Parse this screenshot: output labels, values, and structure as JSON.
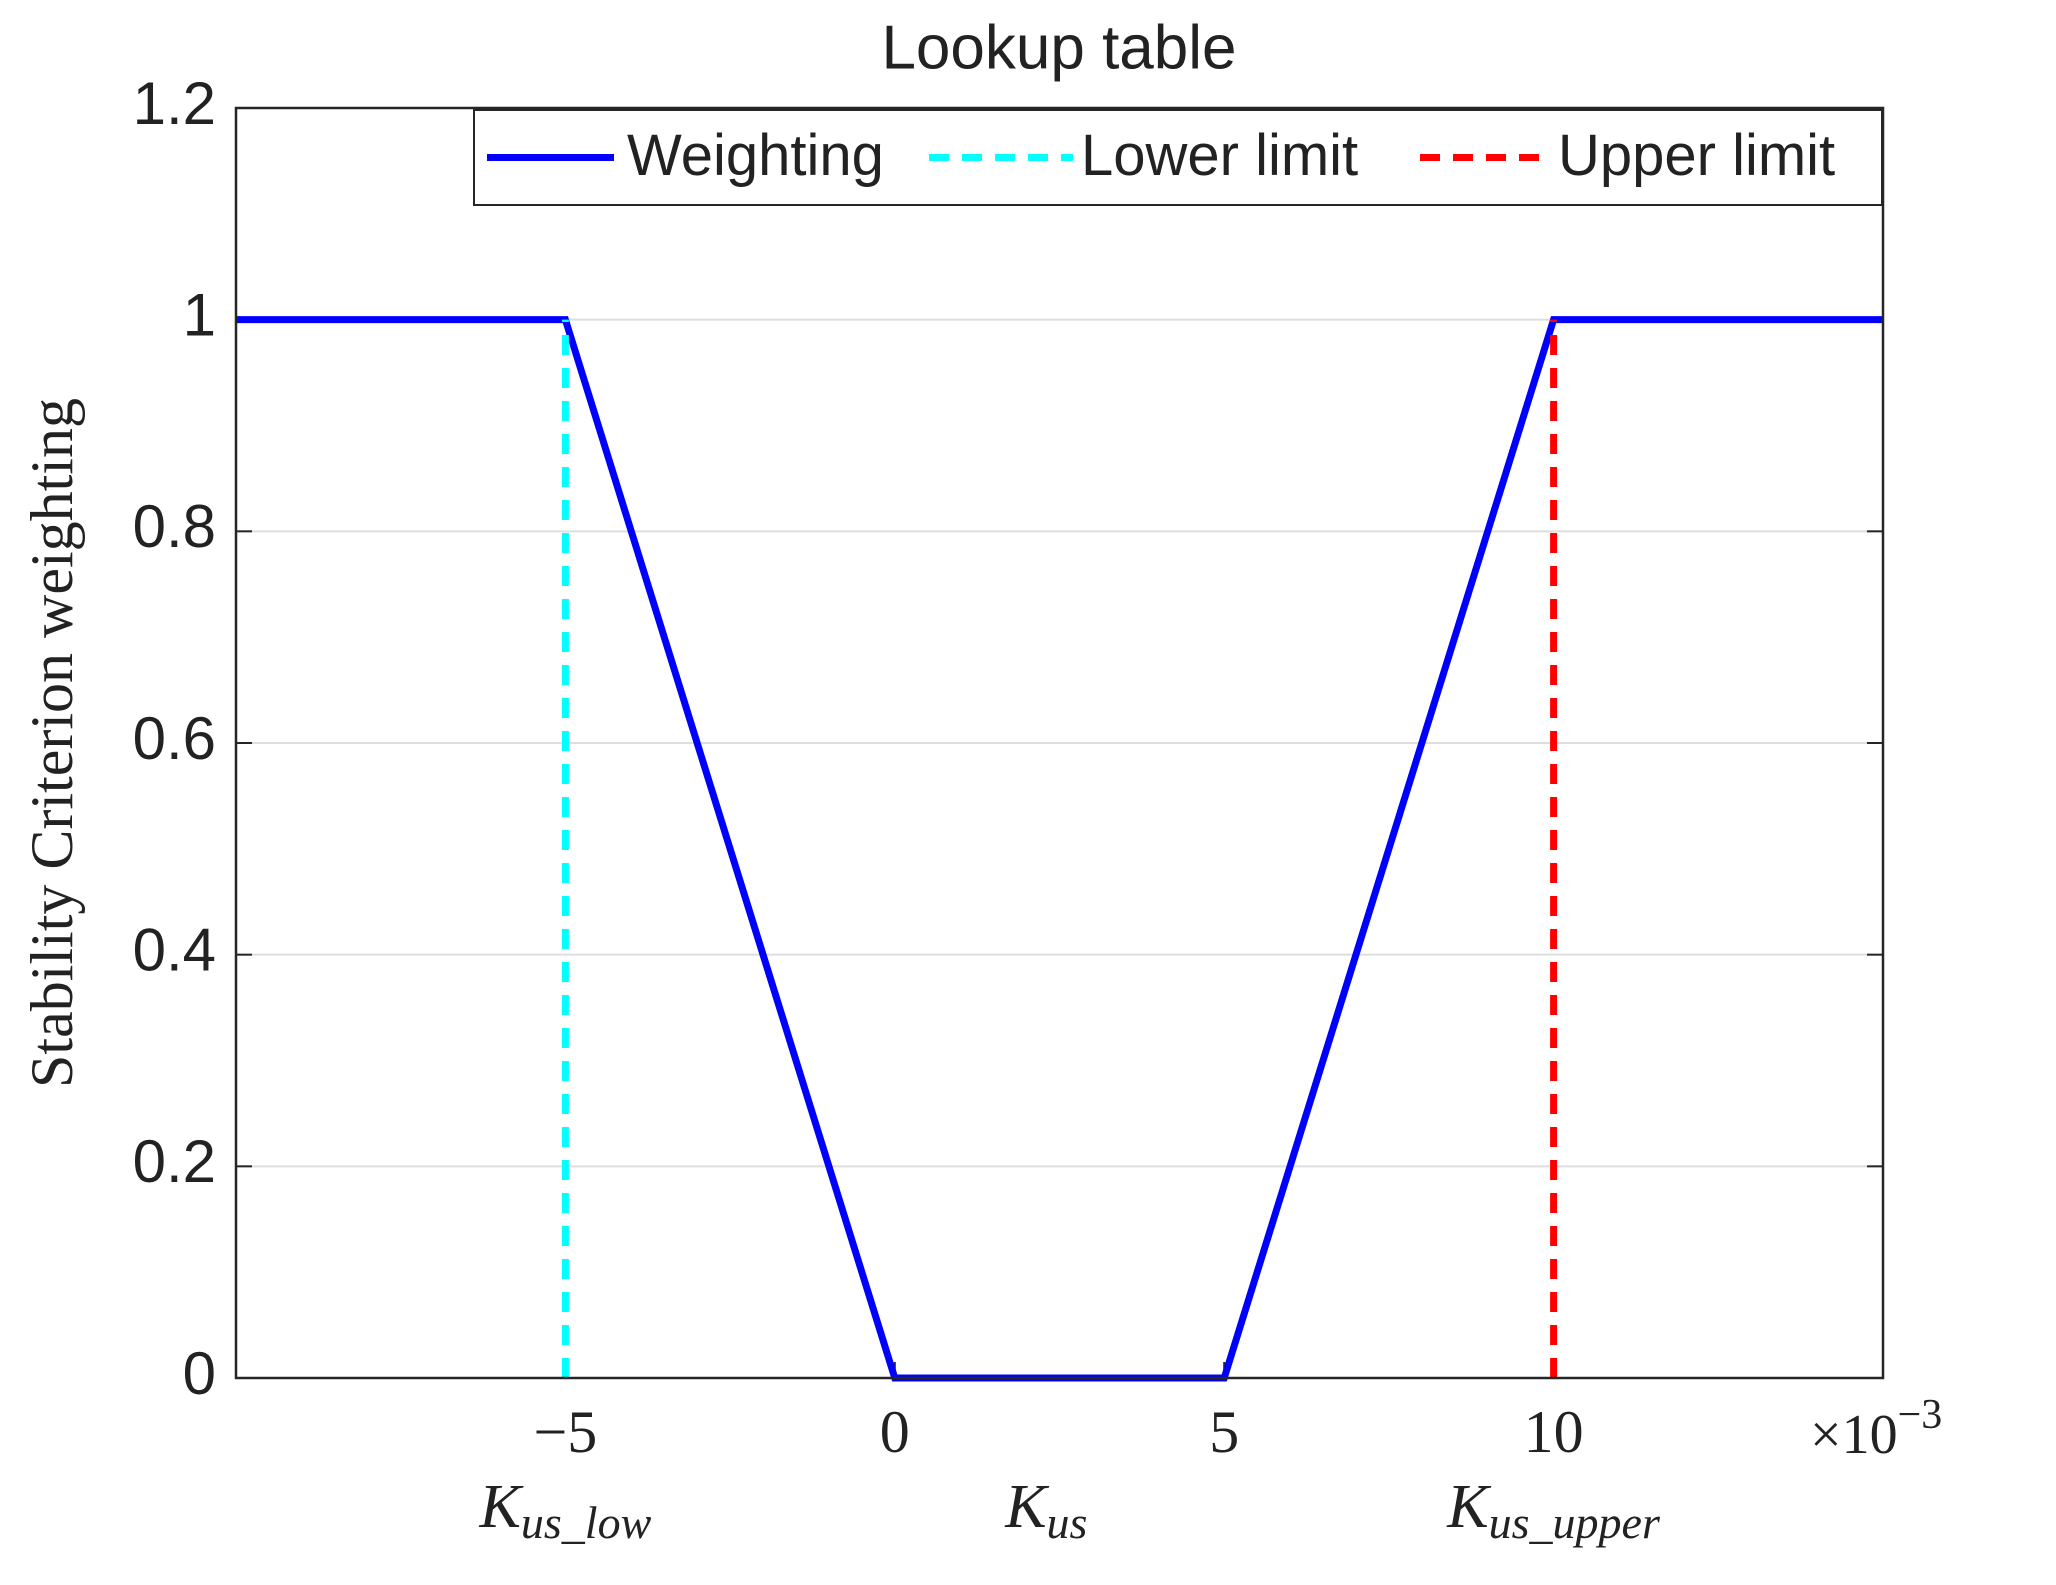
{
  "chart_data": {
    "type": "line",
    "title": "Lookup table",
    "ylabel": "Stability Criterion weighting",
    "x_exponent": {
      "base": "×10",
      "sup": "−3"
    },
    "x_annotations": [
      {
        "text": "K",
        "sub": "us_low",
        "x": -5
      },
      {
        "text": "K",
        "sub": "us",
        "x": 2.3
      },
      {
        "text": "K",
        "sub": "us_upper",
        "x": 10
      }
    ],
    "xlim": [
      -10,
      15
    ],
    "xticks": [
      -5,
      0,
      5,
      10
    ],
    "ylim": [
      0,
      1.2
    ],
    "yticks": [
      0,
      0.2,
      0.4,
      0.6,
      0.8,
      1,
      1.2
    ],
    "grid": true,
    "legend": "upper right",
    "series": [
      {
        "name": "Weighting",
        "color": "#0000ff",
        "dash": false,
        "x": [
          -10,
          -5,
          0,
          5,
          10,
          15
        ],
        "values": [
          1,
          1,
          0,
          0,
          1,
          1
        ]
      },
      {
        "name": "Lower limit",
        "color": "#00ffff",
        "dash": true,
        "x": [
          -5,
          -5
        ],
        "values": [
          0,
          1
        ]
      },
      {
        "name": "Upper limit",
        "color": "#ff0000",
        "dash": true,
        "x": [
          10,
          10
        ],
        "values": [
          0,
          1
        ]
      }
    ]
  }
}
